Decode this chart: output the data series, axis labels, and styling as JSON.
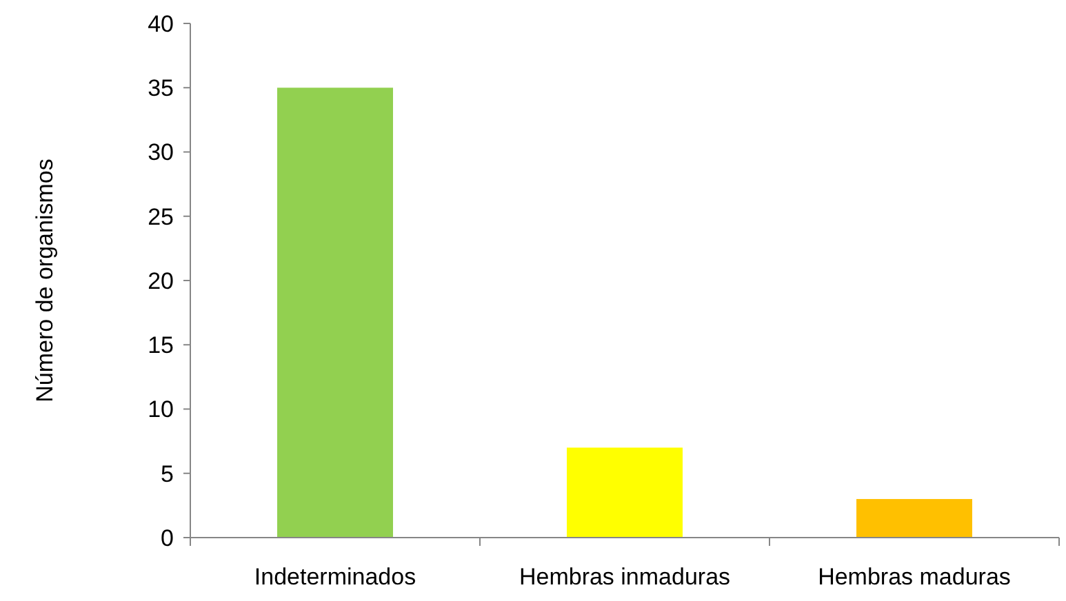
{
  "chart_data": {
    "type": "bar",
    "ylabel": "Número de organismos",
    "categories": [
      "Indeterminados",
      "Hembras inmaduras",
      "Hembras maduras"
    ],
    "values": [
      35,
      7,
      3
    ],
    "colors": [
      "#92d050",
      "#ffff00",
      "#ffc000"
    ],
    "ylim": [
      0,
      40
    ],
    "yticks": [
      0,
      5,
      10,
      15,
      20,
      25,
      30,
      35,
      40
    ],
    "grid": false
  }
}
